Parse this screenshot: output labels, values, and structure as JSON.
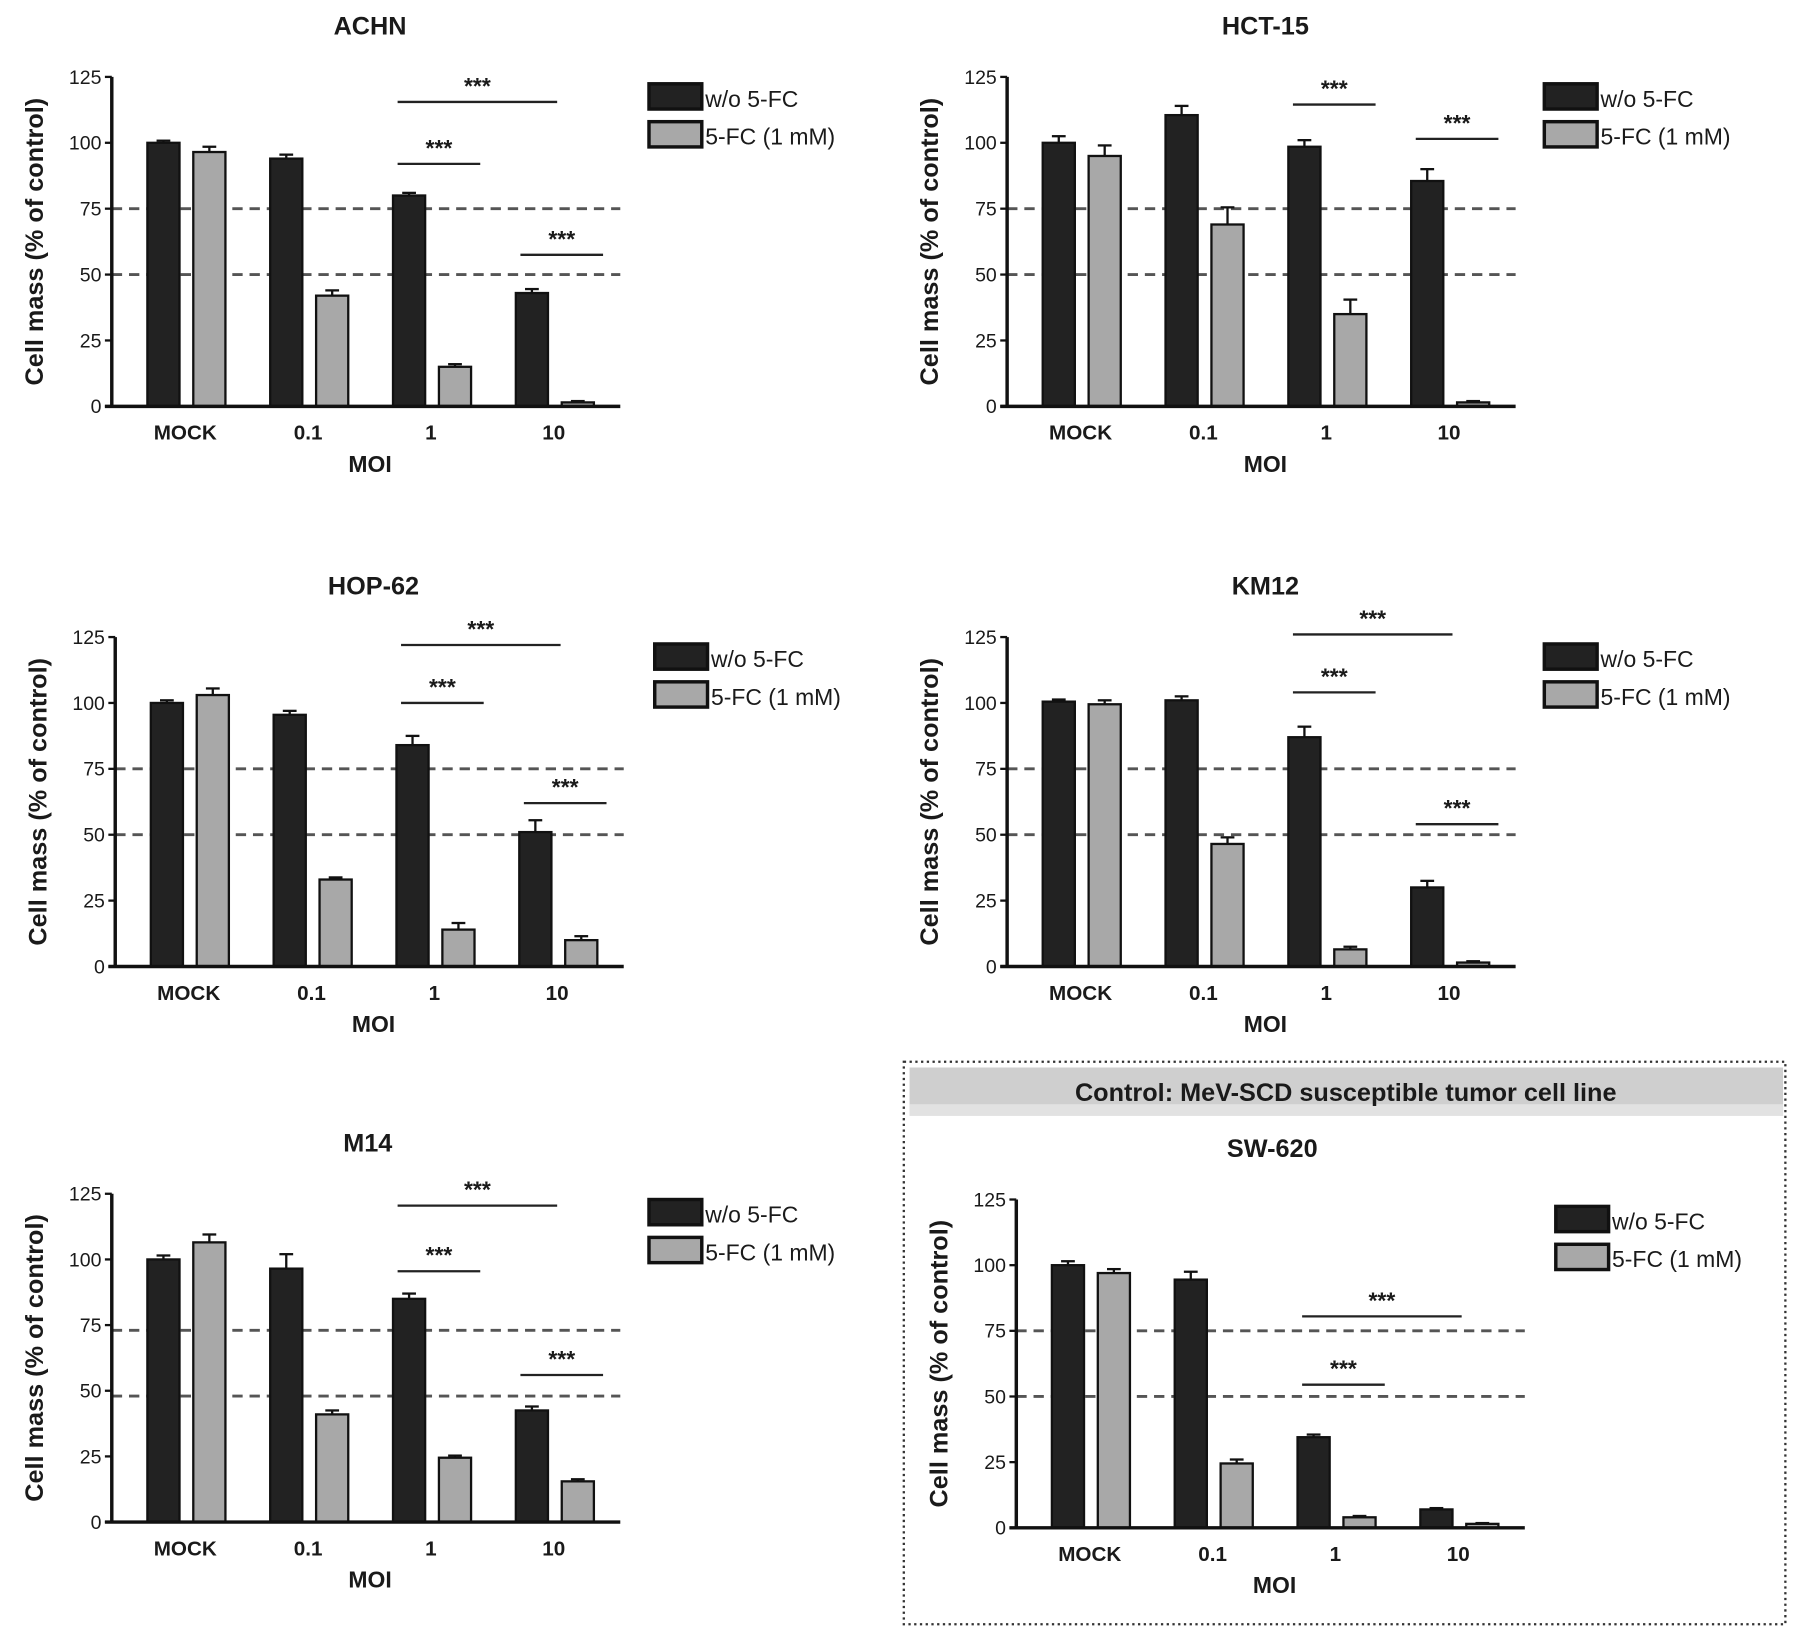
{
  "control_box": {
    "header": "Control: MeV-SCD susceptible tumor cell line"
  },
  "chart_data": [
    {
      "type": "bar",
      "title": "ACHN",
      "xlabel": "MOI",
      "ylabel": "Cell mass (% of control)",
      "ylim": [
        0,
        125
      ],
      "yticks": [
        0,
        25,
        50,
        75,
        100,
        125
      ],
      "categories": [
        "MOCK",
        "0.1",
        "1",
        "10"
      ],
      "reference_lines": [
        75,
        50
      ],
      "legend": "right",
      "series": [
        {
          "name": "w/o 5-FC",
          "color": "#222222",
          "values": [
            100,
            94,
            80,
            43
          ],
          "errors": [
            0.8,
            1.5,
            1,
            1.5
          ]
        },
        {
          "name": "5-FC (1 mM)",
          "color": "#a8a8a8",
          "values": [
            96.5,
            42,
            15,
            1.5
          ],
          "errors": [
            2,
            2,
            1,
            0.5
          ]
        }
      ],
      "significance": [
        {
          "label": "***",
          "from": [
            2,
            0
          ],
          "to": [
            3,
            0
          ],
          "y": 115.5
        },
        {
          "label": "***",
          "from": [
            2,
            0
          ],
          "to": [
            2,
            1
          ],
          "y": 92
        },
        {
          "label": "***",
          "from": [
            3,
            0
          ],
          "to": [
            3,
            1
          ],
          "y": 57.5
        }
      ]
    },
    {
      "type": "bar",
      "title": "HCT-15",
      "xlabel": "MOI",
      "ylabel": "Cell mass (% of control)",
      "ylim": [
        0,
        125
      ],
      "yticks": [
        0,
        25,
        50,
        75,
        100,
        125
      ],
      "categories": [
        "MOCK",
        "0.1",
        "1",
        "10"
      ],
      "reference_lines": [
        75,
        50
      ],
      "legend": "right",
      "series": [
        {
          "name": "w/o 5-FC",
          "color": "#222222",
          "values": [
            100,
            110.5,
            98.5,
            85.5
          ],
          "errors": [
            2.5,
            3.5,
            2.5,
            4.5
          ]
        },
        {
          "name": "5-FC (1 mM)",
          "color": "#a8a8a8",
          "values": [
            95,
            69,
            35,
            1.5
          ],
          "errors": [
            4,
            6.5,
            5.5,
            0.5
          ]
        }
      ],
      "significance": [
        {
          "label": "***",
          "from": [
            2,
            0
          ],
          "to": [
            2,
            1
          ],
          "y": 114.5
        },
        {
          "label": "***",
          "from": [
            3,
            0
          ],
          "to": [
            3,
            1
          ],
          "y": 101.5
        }
      ]
    },
    {
      "type": "bar",
      "title": "HOP-62",
      "xlabel": "MOI",
      "ylabel": "Cell mass (% of control)",
      "ylim": [
        0,
        125
      ],
      "yticks": [
        0,
        25,
        50,
        75,
        100,
        125
      ],
      "categories": [
        "MOCK",
        "0.1",
        "1",
        "10"
      ],
      "reference_lines": [
        75,
        50
      ],
      "legend": "right",
      "series": [
        {
          "name": "w/o 5-FC",
          "color": "#222222",
          "values": [
            100,
            95.5,
            84,
            51
          ],
          "errors": [
            1,
            1.5,
            3.5,
            4.5
          ]
        },
        {
          "name": "5-FC (1 mM)",
          "color": "#a8a8a8",
          "values": [
            103,
            33,
            14,
            10
          ],
          "errors": [
            2.5,
            0.8,
            2.5,
            1.5
          ]
        }
      ],
      "significance": [
        {
          "label": "***",
          "from": [
            2,
            0
          ],
          "to": [
            3,
            0
          ],
          "y": 122
        },
        {
          "label": "***",
          "from": [
            2,
            0
          ],
          "to": [
            2,
            1
          ],
          "y": 100
        },
        {
          "label": "***",
          "from": [
            3,
            0
          ],
          "to": [
            3,
            1
          ],
          "y": 62
        }
      ]
    },
    {
      "type": "bar",
      "title": "KM12",
      "xlabel": "MOI",
      "ylabel": "Cell mass (% of control)",
      "ylim": [
        0,
        125
      ],
      "yticks": [
        0,
        25,
        50,
        75,
        100,
        125
      ],
      "categories": [
        "MOCK",
        "0.1",
        "1",
        "10"
      ],
      "reference_lines": [
        75,
        50
      ],
      "legend": "right",
      "series": [
        {
          "name": "w/o 5-FC",
          "color": "#222222",
          "values": [
            100.5,
            101,
            87,
            30
          ],
          "errors": [
            0.8,
            1.5,
            4,
            2.5
          ]
        },
        {
          "name": "5-FC (1 mM)",
          "color": "#a8a8a8",
          "values": [
            99.5,
            46.5,
            6.5,
            1.5
          ],
          "errors": [
            1.5,
            2.5,
            1,
            0.5
          ]
        }
      ],
      "significance": [
        {
          "label": "***",
          "from": [
            2,
            0
          ],
          "to": [
            3,
            0
          ],
          "y": 126
        },
        {
          "label": "***",
          "from": [
            2,
            0
          ],
          "to": [
            2,
            1
          ],
          "y": 104
        },
        {
          "label": "***",
          "from": [
            3,
            0
          ],
          "to": [
            3,
            1
          ],
          "y": 54
        }
      ]
    },
    {
      "type": "bar",
      "title": "M14",
      "xlabel": "MOI",
      "ylabel": "Cell mass (% of control)",
      "ylim": [
        0,
        125
      ],
      "yticks": [
        0,
        25,
        50,
        75,
        100,
        125
      ],
      "categories": [
        "MOCK",
        "0.1",
        "1",
        "10"
      ],
      "reference_lines": [
        73,
        48
      ],
      "legend": "right",
      "series": [
        {
          "name": "w/o 5-FC",
          "color": "#222222",
          "values": [
            100,
            96.5,
            85,
            42.5
          ],
          "errors": [
            1.5,
            5.5,
            2,
            1.5
          ]
        },
        {
          "name": "5-FC (1 mM)",
          "color": "#a8a8a8",
          "values": [
            106.5,
            41,
            24.5,
            15.5
          ],
          "errors": [
            3,
            1.5,
            0.8,
            0.8
          ]
        }
      ],
      "significance": [
        {
          "label": "***",
          "from": [
            2,
            0
          ],
          "to": [
            3,
            0
          ],
          "y": 120.5
        },
        {
          "label": "***",
          "from": [
            2,
            0
          ],
          "to": [
            2,
            1
          ],
          "y": 95.5
        },
        {
          "label": "***",
          "from": [
            3,
            0
          ],
          "to": [
            3,
            1
          ],
          "y": 56
        }
      ]
    },
    {
      "type": "bar",
      "title": "SW-620",
      "xlabel": "MOI",
      "ylabel": "Cell mass (% of control)",
      "ylim": [
        0,
        125
      ],
      "yticks": [
        0,
        25,
        50,
        75,
        100,
        125
      ],
      "categories": [
        "MOCK",
        "0.1",
        "1",
        "10"
      ],
      "reference_lines": [
        75,
        50
      ],
      "legend": "right",
      "series": [
        {
          "name": "w/o 5-FC",
          "color": "#222222",
          "values": [
            100,
            94.5,
            34.5,
            7
          ],
          "errors": [
            1.5,
            3,
            1,
            0.5
          ]
        },
        {
          "name": "5-FC (1 mM)",
          "color": "#a8a8a8",
          "values": [
            97,
            24.5,
            4,
            1.5
          ],
          "errors": [
            1.5,
            1.5,
            0.5,
            0.3
          ]
        }
      ],
      "significance": [
        {
          "label": "***",
          "from": [
            2,
            0
          ],
          "to": [
            3,
            0
          ],
          "y": 80.5
        },
        {
          "label": "***",
          "from": [
            2,
            0
          ],
          "to": [
            2,
            1
          ],
          "y": 54.5
        }
      ]
    }
  ]
}
